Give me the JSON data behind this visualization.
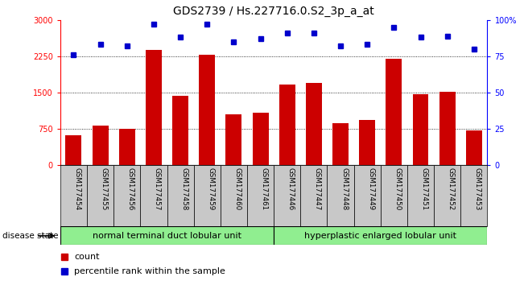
{
  "title": "GDS2739 / Hs.227716.0.S2_3p_a_at",
  "categories": [
    "GSM177454",
    "GSM177455",
    "GSM177456",
    "GSM177457",
    "GSM177458",
    "GSM177459",
    "GSM177460",
    "GSM177461",
    "GSM177446",
    "GSM177447",
    "GSM177448",
    "GSM177449",
    "GSM177450",
    "GSM177451",
    "GSM177452",
    "GSM177453"
  ],
  "counts": [
    620,
    820,
    760,
    2380,
    1430,
    2280,
    1050,
    1080,
    1660,
    1700,
    870,
    940,
    2200,
    1460,
    1510,
    720
  ],
  "percentiles": [
    76,
    83,
    82,
    97,
    88,
    97,
    85,
    87,
    91,
    91,
    82,
    83,
    95,
    88,
    89,
    80
  ],
  "bar_color": "#cc0000",
  "dot_color": "#0000cc",
  "ylim_left": [
    0,
    3000
  ],
  "ylim_right": [
    0,
    100
  ],
  "yticks_left": [
    0,
    750,
    1500,
    2250,
    3000
  ],
  "yticks_right": [
    0,
    25,
    50,
    75,
    100
  ],
  "group1_label": "normal terminal duct lobular unit",
  "group2_label": "hyperplastic enlarged lobular unit",
  "group1_count": 8,
  "group2_count": 8,
  "disease_state_label": "disease state",
  "legend_count_label": "count",
  "legend_percentile_label": "percentile rank within the sample",
  "group_color": "#90ee90",
  "tick_area_color": "#c8c8c8",
  "title_fontsize": 10,
  "tick_fontsize": 7,
  "legend_fontsize": 8,
  "group_fontsize": 8
}
